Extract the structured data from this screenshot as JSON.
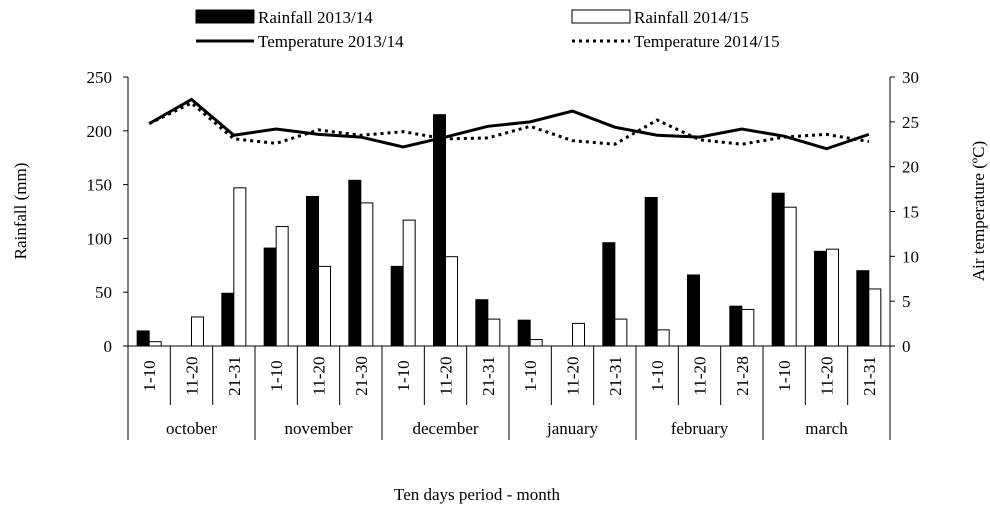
{
  "chart_data": {
    "type": "bar-line",
    "x_label": "Ten days period - month",
    "y_label": "Rainfall (mm)",
    "y2_label": "Air temperature (ºC)",
    "categories": [
      "1-10",
      "11-20",
      "21-31",
      "1-10",
      "11-20",
      "21-30",
      "1-10",
      "11-20",
      "21-31",
      "1-10",
      "11-20",
      "21-31",
      "1-10",
      "11-20",
      "21-28",
      "1-10",
      "11-20",
      "21-31"
    ],
    "months": [
      "october",
      "november",
      "december",
      "january",
      "february",
      "march"
    ],
    "ylim": [
      0,
      250
    ],
    "yticks": [
      0,
      50,
      100,
      150,
      200,
      250
    ],
    "y2lim": [
      0,
      30
    ],
    "y2ticks": [
      0,
      5,
      10,
      15,
      20,
      25,
      30
    ],
    "series": [
      {
        "name": "Rainfall 2013/14",
        "type": "bar",
        "color": "#000000",
        "values": [
          14,
          0,
          49,
          91,
          139,
          154,
          74,
          215,
          43,
          24,
          0,
          96,
          138,
          66,
          37,
          142,
          88,
          70
        ]
      },
      {
        "name": "Rainfall 2014/15",
        "type": "bar",
        "color": "#ffffff",
        "values": [
          4,
          27,
          147,
          111,
          74,
          133,
          117,
          83,
          25,
          6,
          21,
          25,
          15,
          0,
          34,
          129,
          90,
          53
        ]
      },
      {
        "name": "Temperature 2013/14",
        "type": "line",
        "axis": "y2",
        "color": "#000000",
        "dashed": false,
        "values": [
          24.8,
          27.5,
          23.5,
          24.2,
          23.6,
          23.3,
          22.2,
          23.3,
          24.5,
          25.0,
          26.2,
          24.4,
          23.5,
          23.3,
          24.2,
          23.4,
          22.0,
          23.6
        ]
      },
      {
        "name": "Temperature 2014/15",
        "type": "line",
        "axis": "y2",
        "color": "#000000",
        "dashed": true,
        "values": [
          24.8,
          27.1,
          23.1,
          22.6,
          24.1,
          23.5,
          23.9,
          23.1,
          23.2,
          24.5,
          22.9,
          22.5,
          25.2,
          23.0,
          22.5,
          23.3,
          23.6,
          22.8
        ]
      }
    ]
  }
}
